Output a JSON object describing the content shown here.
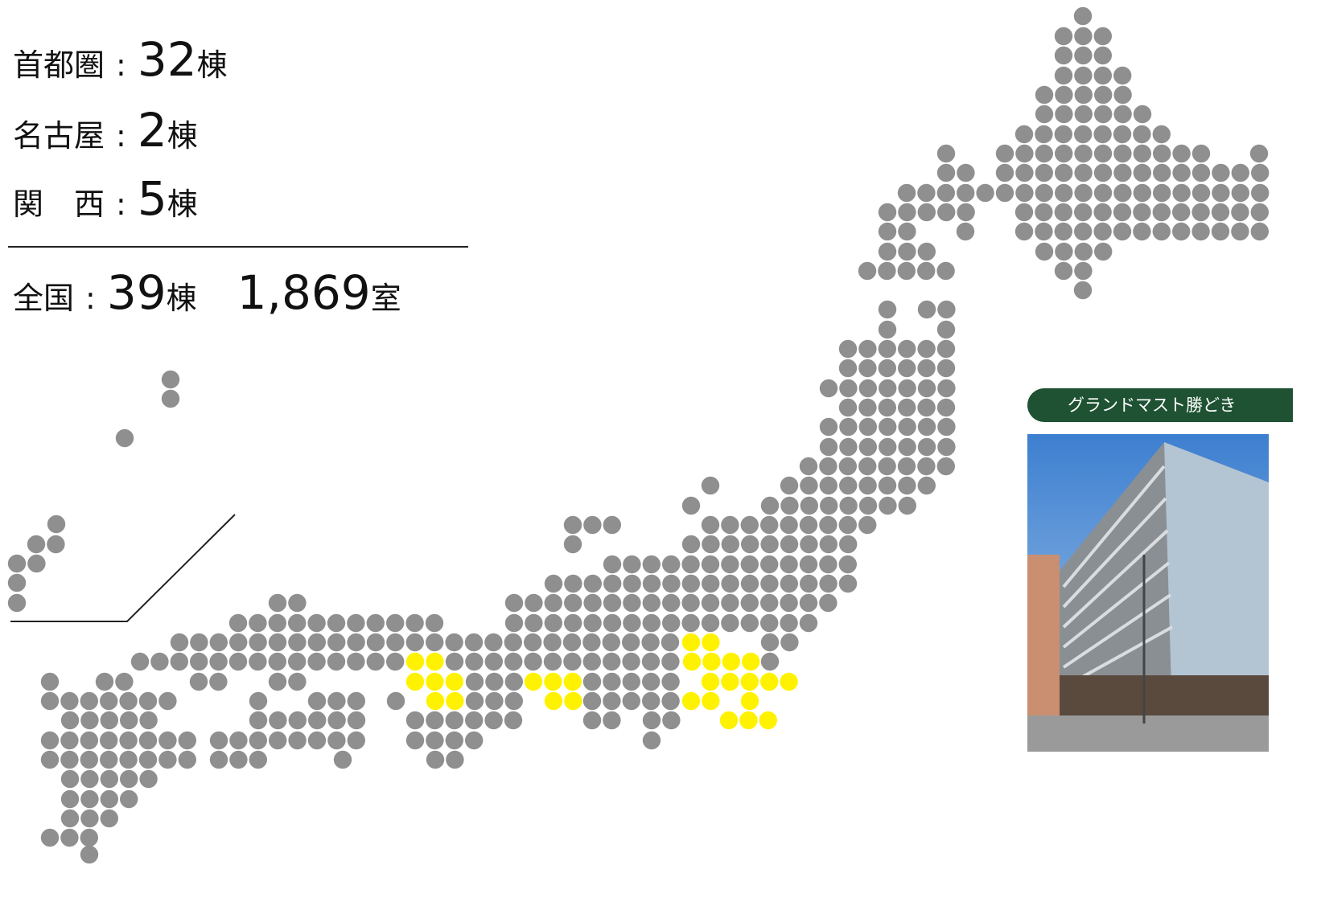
{
  "summary": {
    "rows": [
      {
        "label": "首都圏",
        "sep": ":",
        "count": "32",
        "unit": "棟"
      },
      {
        "label": "名古屋",
        "sep": ":",
        "count": "2",
        "unit": "棟"
      },
      {
        "label": "関　西",
        "sep": ":",
        "count": "5",
        "unit": "棟"
      }
    ],
    "total": {
      "label": "全国",
      "sep": ":",
      "count": "39",
      "unit": "棟",
      "rooms": "1,869",
      "rooms_unit": "室"
    }
  },
  "property": {
    "name": "グランドマスト勝どき"
  }
}
